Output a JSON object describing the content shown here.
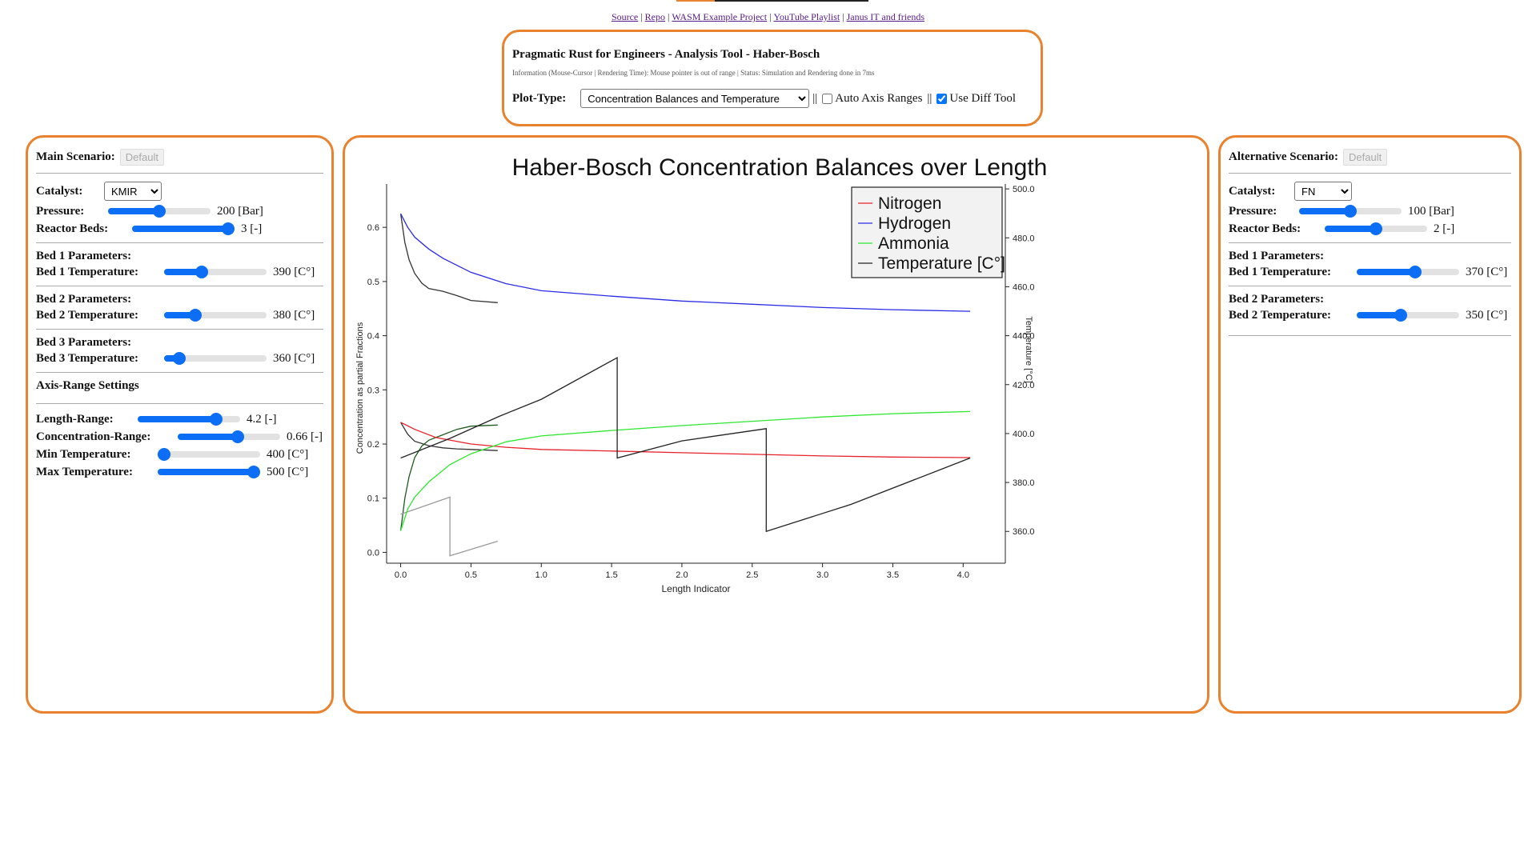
{
  "nav": {
    "links": [
      "Source",
      "Repo",
      "WASM Example Project",
      "YouTube Playlist",
      "Janus IT and friends"
    ],
    "separator": "|"
  },
  "header": {
    "title": "Pragmatic Rust for Engineers - Analysis Tool - Haber-Bosch",
    "info": "Information (Mouse-Cursor | Rendering Time): Mouse pointer is out of range | Status: Simulation and Rendering done in 7ms",
    "plot_type_label": "Plot-Type:",
    "plot_type_value": "Concentration Balances and Temperature",
    "sep1": "||",
    "auto_axis_label": "Auto Axis Ranges",
    "auto_axis_checked": false,
    "sep2": "||",
    "diff_tool_label": "Use Diff Tool",
    "diff_tool_checked": true
  },
  "main": {
    "heading": "Main Scenario:",
    "default_button": "Default",
    "catalyst_label": "Catalyst:",
    "catalyst_value": "KMIR",
    "pressure_label": "Pressure:",
    "pressure_value": "200 [Bar]",
    "pressure_level": 0.5,
    "beds_label": "Reactor Beds:",
    "beds_value": "3 [-]",
    "beds_level": 1.0,
    "beds": [
      {
        "title": "Bed 1 Parameters:",
        "label": "Bed 1 Temperature:",
        "value": "390 [C°]",
        "level": 0.35
      },
      {
        "title": "Bed 2 Parameters:",
        "label": "Bed 2 Temperature:",
        "value": "380 [C°]",
        "level": 0.28
      },
      {
        "title": "Bed 3 Parameters:",
        "label": "Bed 3 Temperature:",
        "value": "360 [C°]",
        "level": 0.1
      }
    ],
    "axis_title": "Axis-Range Settings",
    "axis": [
      {
        "label": "Length-Range:",
        "value": "4.2 [-]",
        "level": 0.8
      },
      {
        "label": "Concentration-Range:",
        "value": "0.66 [-]",
        "level": 0.6
      },
      {
        "label": "Min Temperature:",
        "value": "400 [C°]",
        "level": 0.0
      },
      {
        "label": "Max Temperature:",
        "value": "500 [C°]",
        "level": 1.0
      }
    ]
  },
  "alt": {
    "heading": "Alternative Scenario:",
    "default_button": "Default",
    "catalyst_label": "Catalyst:",
    "catalyst_value": "FN",
    "pressure_label": "Pressure:",
    "pressure_value": "100 [Bar]",
    "pressure_level": 0.5,
    "beds_label": "Reactor Beds:",
    "beds_value": "2 [-]",
    "beds_level": 0.5,
    "beds": [
      {
        "title": "Bed 1 Parameters:",
        "label": "Bed 1 Temperature:",
        "value": "370 [C°]",
        "level": 0.58
      },
      {
        "title": "Bed 2 Parameters:",
        "label": "Bed 2 Temperature:",
        "value": "350 [C°]",
        "level": 0.42
      }
    ]
  },
  "chart_data": {
    "type": "line",
    "title": "Haber-Bosch Concentration Balances over Length",
    "xlabel": "Length Indicator",
    "ylabel": "Concentration as partial Fractions",
    "y2label": "Temperature [°C]",
    "xlim": [
      -0.1,
      4.3
    ],
    "ylim": [
      -0.02,
      0.68
    ],
    "y2lim": [
      347,
      502
    ],
    "xticks": [
      "0.0",
      "0.5",
      "1.0",
      "1.5",
      "2.0",
      "2.5",
      "3.0",
      "3.5",
      "4.0"
    ],
    "yticks": [
      "0.0",
      "0.1",
      "0.2",
      "0.3",
      "0.4",
      "0.5",
      "0.6"
    ],
    "y2ticks": [
      "360.0",
      "380.0",
      "400.0",
      "420.0",
      "440.0",
      "460.0",
      "480.0",
      "500.0"
    ],
    "legend_position": "top-right",
    "series": [
      {
        "name": "Nitrogen",
        "color": "#e8202a",
        "axis": "left",
        "x": [
          0.0,
          0.1,
          0.25,
          0.5,
          0.75,
          1.0,
          1.5,
          2.0,
          2.5,
          3.0,
          3.5,
          4.05
        ],
        "y": [
          0.24,
          0.227,
          0.212,
          0.2,
          0.194,
          0.19,
          0.187,
          0.184,
          0.181,
          0.178,
          0.176,
          0.175
        ]
      },
      {
        "name": "Hydrogen",
        "color": "#2a2ae8",
        "axis": "left",
        "x": [
          0.0,
          0.05,
          0.1,
          0.2,
          0.3,
          0.5,
          0.75,
          1.0,
          1.5,
          2.0,
          2.5,
          3.0,
          3.5,
          4.05
        ],
        "y": [
          0.625,
          0.6,
          0.582,
          0.56,
          0.543,
          0.517,
          0.496,
          0.483,
          0.473,
          0.464,
          0.458,
          0.452,
          0.448,
          0.445
        ]
      },
      {
        "name": "Ammonia",
        "color": "#2ee82e",
        "axis": "left",
        "x": [
          0.0,
          0.05,
          0.1,
          0.2,
          0.35,
          0.5,
          0.75,
          1.0,
          1.5,
          2.0,
          2.5,
          3.0,
          3.5,
          4.05
        ],
        "y": [
          0.04,
          0.08,
          0.102,
          0.13,
          0.162,
          0.182,
          0.204,
          0.215,
          0.225,
          0.234,
          0.242,
          0.25,
          0.256,
          0.26
        ]
      },
      {
        "name": "Temperature [C°]",
        "color": "#222222",
        "axis": "right",
        "x": [
          0.0,
          0.35,
          0.7,
          1.0,
          1.54,
          1.54,
          2.0,
          2.6,
          2.6,
          3.2,
          4.05
        ],
        "y": [
          390,
          398,
          407,
          414,
          431,
          390,
          397,
          402,
          360,
          371,
          390
        ]
      }
    ],
    "diff_series": [
      {
        "name": "",
        "color": "#333333",
        "axis": "left",
        "x": [
          0.0,
          0.03,
          0.06,
          0.1,
          0.15,
          0.2,
          0.3,
          0.4,
          0.5,
          0.69
        ],
        "y": [
          0.625,
          0.572,
          0.54,
          0.515,
          0.497,
          0.487,
          0.482,
          0.474,
          0.465,
          0.461
        ]
      },
      {
        "name": "",
        "color": "#333333",
        "axis": "left",
        "x": [
          0.0,
          0.05,
          0.1,
          0.2,
          0.3,
          0.4,
          0.5,
          0.69
        ],
        "y": [
          0.24,
          0.218,
          0.205,
          0.197,
          0.193,
          0.191,
          0.19,
          0.188
        ]
      },
      {
        "name": "",
        "color": "#1e5a1e",
        "axis": "left",
        "x": [
          0.0,
          0.03,
          0.06,
          0.1,
          0.15,
          0.2,
          0.3,
          0.4,
          0.5,
          0.69
        ],
        "y": [
          0.04,
          0.1,
          0.14,
          0.175,
          0.196,
          0.207,
          0.217,
          0.227,
          0.233,
          0.235
        ]
      },
      {
        "name": "",
        "color": "#999999",
        "axis": "right",
        "x": [
          0.0,
          0.35,
          0.35,
          0.69
        ],
        "y": [
          367,
          374,
          350,
          356
        ]
      }
    ]
  }
}
